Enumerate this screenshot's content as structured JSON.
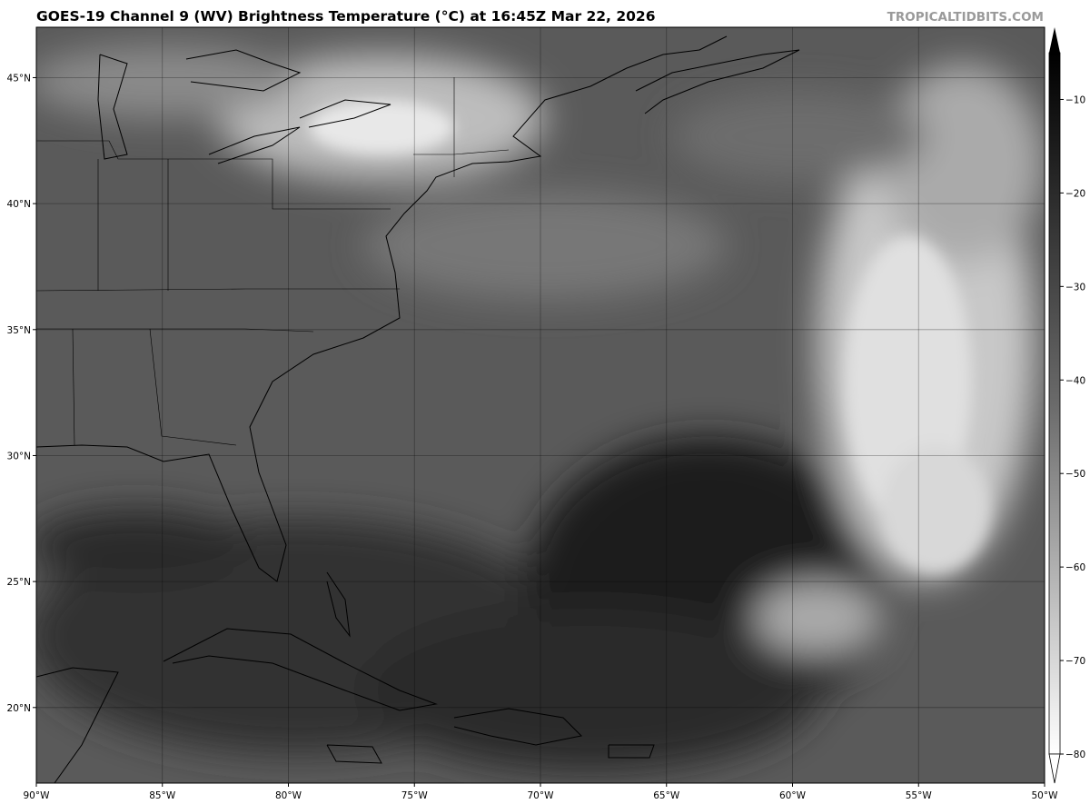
{
  "header": {
    "title": "GOES-19 Channel 9 (WV) Brightness Temperature (°C) at 16:45Z Mar 22, 2026",
    "brand": "TROPICALTIDBITS.COM"
  },
  "map": {
    "extent": {
      "lon": [
        -90,
        -50
      ],
      "lat": [
        17,
        47
      ]
    },
    "lon_ticks": [
      {
        "value": -90,
        "label": "90°W"
      },
      {
        "value": -85,
        "label": "85°W"
      },
      {
        "value": -80,
        "label": "80°W"
      },
      {
        "value": -75,
        "label": "75°W"
      },
      {
        "value": -70,
        "label": "70°W"
      },
      {
        "value": -65,
        "label": "65°W"
      },
      {
        "value": -60,
        "label": "60°W"
      },
      {
        "value": -55,
        "label": "55°W"
      },
      {
        "value": -50,
        "label": "50°W"
      }
    ],
    "lat_ticks": [
      {
        "value": 45,
        "label": "45°N"
      },
      {
        "value": 40,
        "label": "40°N"
      },
      {
        "value": 35,
        "label": "35°N"
      },
      {
        "value": 30,
        "label": "30°N"
      },
      {
        "value": 25,
        "label": "25°N"
      },
      {
        "value": 20,
        "label": "20°N"
      }
    ],
    "gridlines": true
  },
  "colorbar": {
    "range": [
      -80,
      -5
    ],
    "extend": "both",
    "colormap": "grayscale (white = cold, black = warm)",
    "ticks": [
      {
        "value": -10,
        "label": "−10"
      },
      {
        "value": -20,
        "label": "−20"
      },
      {
        "value": -30,
        "label": "−30"
      },
      {
        "value": -40,
        "label": "−40"
      },
      {
        "value": -50,
        "label": "−50"
      },
      {
        "value": -60,
        "label": "−60"
      },
      {
        "value": -70,
        "label": "−70"
      },
      {
        "value": -80,
        "label": "−80"
      }
    ]
  }
}
